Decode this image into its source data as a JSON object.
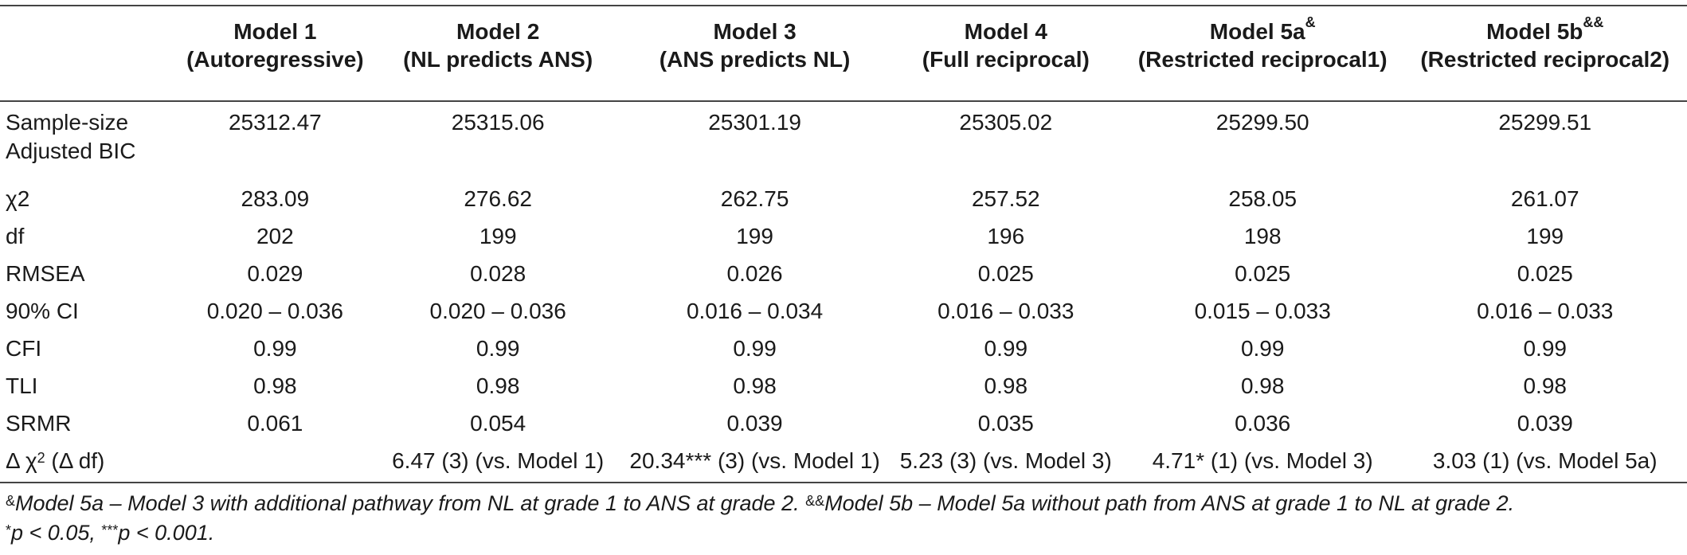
{
  "columns": [
    {
      "name": "Model 1",
      "sub": "(Autoregressive)",
      "mark": ""
    },
    {
      "name": "Model 2",
      "sub": "(NL predicts ANS)",
      "mark": ""
    },
    {
      "name": "Model 3",
      "sub": "(ANS predicts NL)",
      "mark": ""
    },
    {
      "name": "Model 4",
      "sub": "(Full reciprocal)",
      "mark": ""
    },
    {
      "name": "Model 5a",
      "sub": "(Restricted reciprocal1)",
      "mark": "&"
    },
    {
      "name": "Model 5b",
      "sub": "(Restricted reciprocal2)",
      "mark": "&&"
    }
  ],
  "rows": [
    {
      "label": "Sample-size",
      "label2": "Adjusted BIC",
      "values": [
        "25312.47",
        "25315.06",
        "25301.19",
        "25305.02",
        "25299.50",
        "25299.51"
      ]
    },
    {
      "label": "χ2",
      "values": [
        "283.09",
        "276.62",
        "262.75",
        "257.52",
        "258.05",
        "261.07"
      ]
    },
    {
      "label": "df",
      "values": [
        "202",
        "199",
        "199",
        "196",
        "198",
        "199"
      ]
    },
    {
      "label": "RMSEA",
      "values": [
        "0.029",
        "0.028",
        "0.026",
        "0.025",
        "0.025",
        "0.025"
      ]
    },
    {
      "label": "90% CI",
      "values": [
        "0.020 – 0.036",
        "0.020 – 0.036",
        "0.016 – 0.034",
        "0.016 – 0.033",
        "0.015 – 0.033",
        "0.016 – 0.033"
      ]
    },
    {
      "label": "CFI",
      "values": [
        "0.99",
        "0.99",
        "0.99",
        "0.99",
        "0.99",
        "0.99"
      ]
    },
    {
      "label": "TLI",
      "values": [
        "0.98",
        "0.98",
        "0.98",
        "0.98",
        "0.98",
        "0.98"
      ]
    },
    {
      "label": "SRMR",
      "values": [
        "0.061",
        "0.054",
        "0.039",
        "0.035",
        "0.036",
        "0.039"
      ]
    },
    {
      "label_pre": "Δ χ",
      "label_sup": "2",
      "label_post": " (Δ df)",
      "values": [
        "",
        "6.47 (3) (vs. Model 1)",
        "20.34*** (3) (vs. Model 1)",
        "5.23 (3) (vs. Model 3)",
        "4.71* (1) (vs. Model 3)",
        "3.03 (1) (vs. Model 5a)"
      ]
    }
  ],
  "notes": {
    "mark1": "&",
    "text1": "Model 5a – Model 3 with additional pathway from NL at grade 1 to ANS at grade 2.",
    "mark2": "&&",
    "text2": "Model 5b – Model 5a without path from ANS at grade 1 to NL at grade 2.",
    "mark3": "*",
    "text3": "p < 0.05, ",
    "mark4": "***",
    "text4": "p < 0.001."
  }
}
